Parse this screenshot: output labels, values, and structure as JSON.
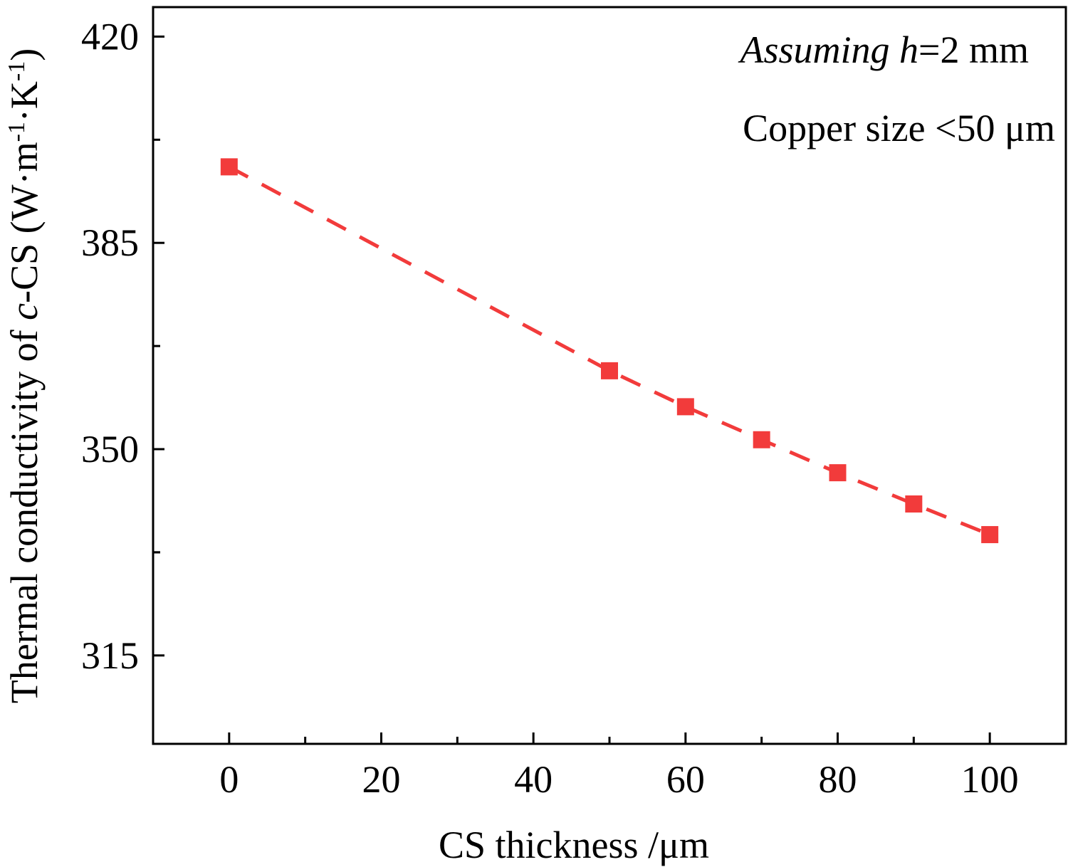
{
  "chart_data": {
    "type": "scatter",
    "x": [
      0,
      50,
      60,
      70,
      80,
      90,
      100
    ],
    "y": [
      397.9,
      363.3,
      357.2,
      351.6,
      346.0,
      340.7,
      335.5
    ],
    "series_style": {
      "marker": "square",
      "line": "dashed",
      "color": "#f23b3b"
    },
    "xlim": [
      -10,
      110
    ],
    "ylim": [
      300,
      425
    ],
    "xticks": [
      0,
      20,
      40,
      60,
      80,
      100
    ],
    "xtick_labels": [
      "0",
      "20",
      "40",
      "60",
      "80",
      "100"
    ],
    "yticks": [
      315,
      350,
      385,
      420
    ],
    "ytick_labels": [
      "315",
      "350",
      "385",
      "420"
    ],
    "xlabel": "CS thickness /μm",
    "ylabel_parts": [
      {
        "text": "Thermal conductivity of ",
        "style": "normal"
      },
      {
        "text": "c",
        "style": "italic"
      },
      {
        "text": "-CS (W·m",
        "style": "normal"
      },
      {
        "text": "-1",
        "style": "sup"
      },
      {
        "text": "·K",
        "style": "normal"
      },
      {
        "text": "-1",
        "style": "sup"
      },
      {
        "text": ")",
        "style": "normal"
      }
    ],
    "annotations": [
      [
        {
          "text": "Assuming ",
          "style": "italic"
        },
        {
          "text": "h",
          "style": "italic"
        },
        {
          "text": "=2 mm",
          "style": "normal"
        }
      ],
      [
        {
          "text": "Copper size <50 μm",
          "style": "normal"
        }
      ]
    ],
    "grid": false,
    "legend": "none"
  }
}
